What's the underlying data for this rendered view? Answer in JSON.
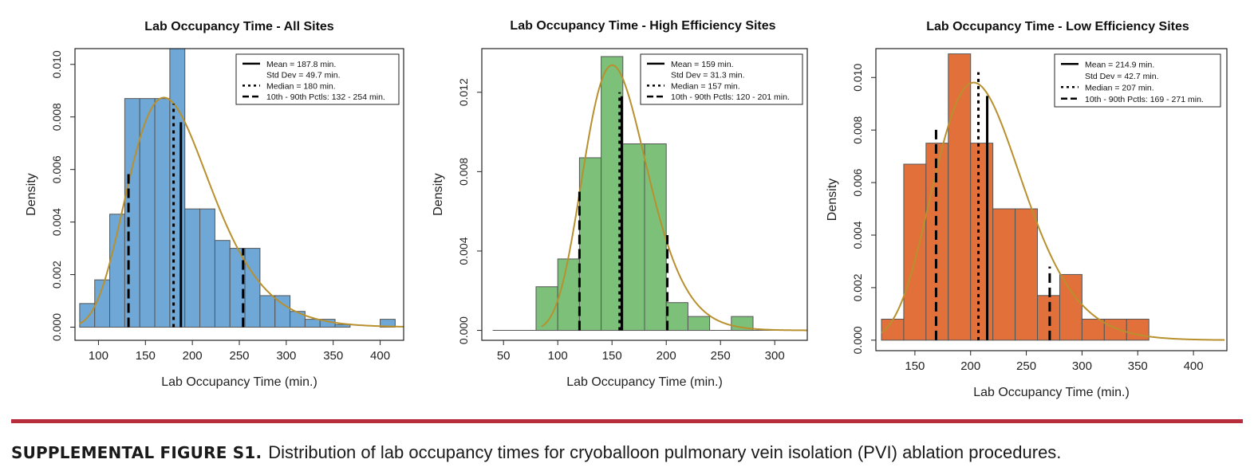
{
  "caption": {
    "label": "SUPPLEMENTAL FIGURE S1.",
    "text": "Distribution of lab occupancy times for cryoballoon pulmonary vein isolation (PVI) ablation procedures."
  },
  "chart_data": [
    {
      "type": "histogram",
      "title": "Lab Occupancy Time - All Sites",
      "xlabel": "Lab Occupancy Time (min.)",
      "ylabel": "Density",
      "xlim": [
        75,
        425
      ],
      "ylim": [
        -0.0005,
        0.0106
      ],
      "xticks": [
        100,
        150,
        200,
        250,
        300,
        350,
        400
      ],
      "yticks": [
        0,
        0.002,
        0.004,
        0.006,
        0.008,
        0.01
      ],
      "ytick_labels": [
        "0.000",
        "0.002",
        "0.004",
        "0.006",
        "0.008",
        "0.010"
      ],
      "bar_color": "#6fa8d6",
      "bins": [
        {
          "x0": 80,
          "x1": 96,
          "density": 0.0009
        },
        {
          "x0": 96,
          "x1": 112,
          "density": 0.0018
        },
        {
          "x0": 112,
          "x1": 128,
          "density": 0.0043
        },
        {
          "x0": 128,
          "x1": 144,
          "density": 0.0087
        },
        {
          "x0": 144,
          "x1": 160,
          "density": 0.0087
        },
        {
          "x0": 160,
          "x1": 176,
          "density": 0.0087
        },
        {
          "x0": 176,
          "x1": 192,
          "density": 0.0106
        },
        {
          "x0": 192,
          "x1": 208,
          "density": 0.0045
        },
        {
          "x0": 208,
          "x1": 224,
          "density": 0.0045
        },
        {
          "x0": 224,
          "x1": 240,
          "density": 0.0033
        },
        {
          "x0": 240,
          "x1": 256,
          "density": 0.003
        },
        {
          "x0": 256,
          "x1": 272,
          "density": 0.003
        },
        {
          "x0": 272,
          "x1": 288,
          "density": 0.0012
        },
        {
          "x0": 288,
          "x1": 304,
          "density": 0.0012
        },
        {
          "x0": 304,
          "x1": 320,
          "density": 0.0006
        },
        {
          "x0": 320,
          "x1": 336,
          "density": 0.0003
        },
        {
          "x0": 336,
          "x1": 352,
          "density": 0.0003
        },
        {
          "x0": 352,
          "x1": 368,
          "density": 0.0001
        },
        {
          "x0": 400,
          "x1": 416,
          "density": 0.0003
        }
      ],
      "curve": {
        "type": "lognormal",
        "mean": 187.8,
        "sd": 49.7,
        "x_start": 80,
        "x_end": 425,
        "color": "#b8902e"
      },
      "vlines": [
        {
          "x": 187.8,
          "top": 0.0078,
          "style": "solid"
        },
        {
          "x": 180,
          "top": 0.0085,
          "style": "dotted"
        },
        {
          "x": 132,
          "top": 0.006,
          "style": "dashed"
        },
        {
          "x": 254,
          "top": 0.003,
          "style": "dashed"
        }
      ],
      "legend": {
        "position": "top-right",
        "entries": [
          {
            "style": "solid",
            "text": "Mean = 187.8 min."
          },
          {
            "style": "none",
            "text": "Std Dev = 49.7 min."
          },
          {
            "style": "dotted",
            "text": "Median = 180 min."
          },
          {
            "style": "dashed",
            "text": "10th - 90th Pctls: 132 - 254 min."
          }
        ]
      }
    },
    {
      "type": "histogram",
      "title": "Lab Occupancy Time - High Efficiency Sites",
      "xlabel": "Lab Occupancy Time (min.)",
      "ylabel": "Density",
      "xlim": [
        30,
        330
      ],
      "ylim": [
        -0.0005,
        0.0142
      ],
      "xticks": [
        50,
        100,
        150,
        200,
        250,
        300
      ],
      "yticks": [
        0,
        0.004,
        0.008,
        0.012
      ],
      "ytick_labels": [
        "0.000",
        "0.004",
        "0.008",
        "0.012"
      ],
      "bar_color": "#7dc07a",
      "bins": [
        {
          "x0": 80,
          "x1": 100,
          "density": 0.0022
        },
        {
          "x0": 100,
          "x1": 120,
          "density": 0.0036
        },
        {
          "x0": 120,
          "x1": 140,
          "density": 0.0087
        },
        {
          "x0": 140,
          "x1": 160,
          "density": 0.0138
        },
        {
          "x0": 160,
          "x1": 180,
          "density": 0.0094
        },
        {
          "x0": 180,
          "x1": 200,
          "density": 0.0094
        },
        {
          "x0": 200,
          "x1": 220,
          "density": 0.0014
        },
        {
          "x0": 220,
          "x1": 240,
          "density": 0.0007
        },
        {
          "x0": 260,
          "x1": 280,
          "density": 0.0007
        }
      ],
      "curve": {
        "type": "lognormal",
        "mean": 159,
        "sd": 31.3,
        "x_start": 85,
        "x_end": 330,
        "color": "#b8902e"
      },
      "baseline_extent": [
        40,
        330
      ],
      "vlines": [
        {
          "x": 159,
          "top": 0.0118,
          "style": "solid"
        },
        {
          "x": 157,
          "top": 0.012,
          "style": "dotted"
        },
        {
          "x": 120,
          "top": 0.0072,
          "style": "dashed"
        },
        {
          "x": 201,
          "top": 0.0048,
          "style": "dashed"
        }
      ],
      "legend": {
        "position": "top-right",
        "entries": [
          {
            "style": "solid",
            "text": "Mean = 159 min."
          },
          {
            "style": "none",
            "text": "Std Dev = 31.3 min."
          },
          {
            "style": "dotted",
            "text": "Median = 157 min."
          },
          {
            "style": "dashed",
            "text": "10th - 90th Pctls: 120 - 201 min."
          }
        ]
      }
    },
    {
      "type": "histogram",
      "title": "Lab Occupancy Time - Low Efficiency Sites",
      "xlabel": "Lab Occupancy Time (min.)",
      "ylabel": "Density",
      "xlim": [
        115,
        430
      ],
      "ylim": [
        -0.0004,
        0.0111
      ],
      "xticks": [
        150,
        200,
        250,
        300,
        350,
        400
      ],
      "yticks": [
        0,
        0.002,
        0.004,
        0.006,
        0.008,
        0.01
      ],
      "ytick_labels": [
        "0.000",
        "0.002",
        "0.004",
        "0.006",
        "0.008",
        "0.010"
      ],
      "bar_color": "#e2703a",
      "bins": [
        {
          "x0": 120,
          "x1": 140,
          "density": 0.0008
        },
        {
          "x0": 140,
          "x1": 160,
          "density": 0.0067
        },
        {
          "x0": 160,
          "x1": 180,
          "density": 0.0075
        },
        {
          "x0": 180,
          "x1": 200,
          "density": 0.0109
        },
        {
          "x0": 200,
          "x1": 220,
          "density": 0.0075
        },
        {
          "x0": 220,
          "x1": 240,
          "density": 0.005
        },
        {
          "x0": 240,
          "x1": 260,
          "density": 0.005
        },
        {
          "x0": 260,
          "x1": 280,
          "density": 0.0017
        },
        {
          "x0": 280,
          "x1": 300,
          "density": 0.0025
        },
        {
          "x0": 300,
          "x1": 320,
          "density": 0.0008
        },
        {
          "x0": 320,
          "x1": 340,
          "density": 0.0008
        },
        {
          "x0": 340,
          "x1": 360,
          "density": 0.0008
        }
      ],
      "curve": {
        "type": "lognormal",
        "mean": 214.9,
        "sd": 42.7,
        "x_start": 120,
        "x_end": 428,
        "color": "#b8902e"
      },
      "vlines": [
        {
          "x": 214.9,
          "top": 0.0093,
          "style": "solid"
        },
        {
          "x": 207,
          "top": 0.0102,
          "style": "dotted"
        },
        {
          "x": 169,
          "top": 0.0081,
          "style": "dashed"
        },
        {
          "x": 271,
          "top": 0.0028,
          "style": "dashed"
        }
      ],
      "legend": {
        "position": "top-right",
        "entries": [
          {
            "style": "solid",
            "text": "Mean = 214.9 min."
          },
          {
            "style": "none",
            "text": "Std Dev = 42.7 min."
          },
          {
            "style": "dotted",
            "text": "Median = 207 min."
          },
          {
            "style": "dashed",
            "text": "10th - 90th Pctls: 169 - 271 min."
          }
        ]
      }
    }
  ]
}
